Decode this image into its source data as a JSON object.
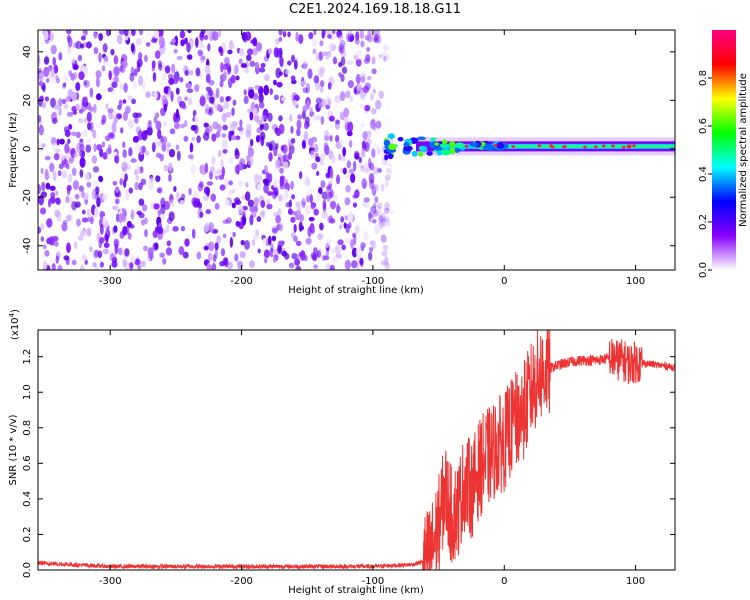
{
  "title": "C2E1.2024.169.18.18.G11",
  "chart_data": [
    {
      "type": "heatmap",
      "xlabel": "Height of straight line (km)",
      "ylabel": "Frequency (Hz)",
      "xlim": [
        -355,
        130
      ],
      "ylim": [
        -50,
        49
      ],
      "xticks": [
        -300,
        -200,
        -100,
        0,
        100
      ],
      "yticks": [
        -40,
        -20,
        0,
        20,
        40
      ],
      "colorbar": {
        "label": "Normalized spectral amplitude",
        "range": [
          0,
          1
        ],
        "ticks": [
          "0.0",
          "0.2",
          "0.4",
          "0.6",
          "0.8"
        ],
        "colors": [
          "#ffffff",
          "#8800ff",
          "#0000ff",
          "#00ffff",
          "#00ff00",
          "#ffff00",
          "#ff0000",
          "#ff0080"
        ]
      },
      "noise_region_x": [
        -355,
        -88
      ],
      "signal_track": {
        "x_start": -90,
        "x_end": 130,
        "frequency_center": 1,
        "peak_amplitude": 0.95
      }
    },
    {
      "type": "line",
      "xlabel": "Height of straight line (km)",
      "ylabel": "SNR (10 * v/v)",
      "y_multiplier": "(x10",
      "y_multiplier_exp": "4",
      "y_multiplier_close": ")",
      "xlim": [
        -355,
        130
      ],
      "ylim": [
        0,
        1.35
      ],
      "xticks": [
        -300,
        -200,
        -100,
        0,
        100
      ],
      "yticks": [
        "0.0",
        "0.2",
        "0.4",
        "0.6",
        "0.8",
        "1.0",
        "1.2"
      ],
      "series": [
        {
          "color": "#ee3333",
          "x": [
            -355,
            -300,
            -250,
            -200,
            -150,
            -100,
            -70,
            -60,
            -55,
            -50,
            -45,
            -40,
            -35,
            -30,
            -25,
            -20,
            -15,
            -10,
            -5,
            0,
            5,
            10,
            15,
            20,
            25,
            30,
            40,
            50,
            60,
            70,
            80,
            90,
            95,
            100,
            110,
            120,
            130
          ],
          "y": [
            0.04,
            0.02,
            0.02,
            0.02,
            0.02,
            0.02,
            0.03,
            0.05,
            0.12,
            0.25,
            0.45,
            0.3,
            0.35,
            0.5,
            0.45,
            0.55,
            0.62,
            0.65,
            0.7,
            0.72,
            0.8,
            0.85,
            0.9,
            1.0,
            1.08,
            1.12,
            1.15,
            1.17,
            1.18,
            1.18,
            1.19,
            1.18,
            1.16,
            1.17,
            1.16,
            1.15,
            1.14
          ]
        }
      ]
    }
  ]
}
